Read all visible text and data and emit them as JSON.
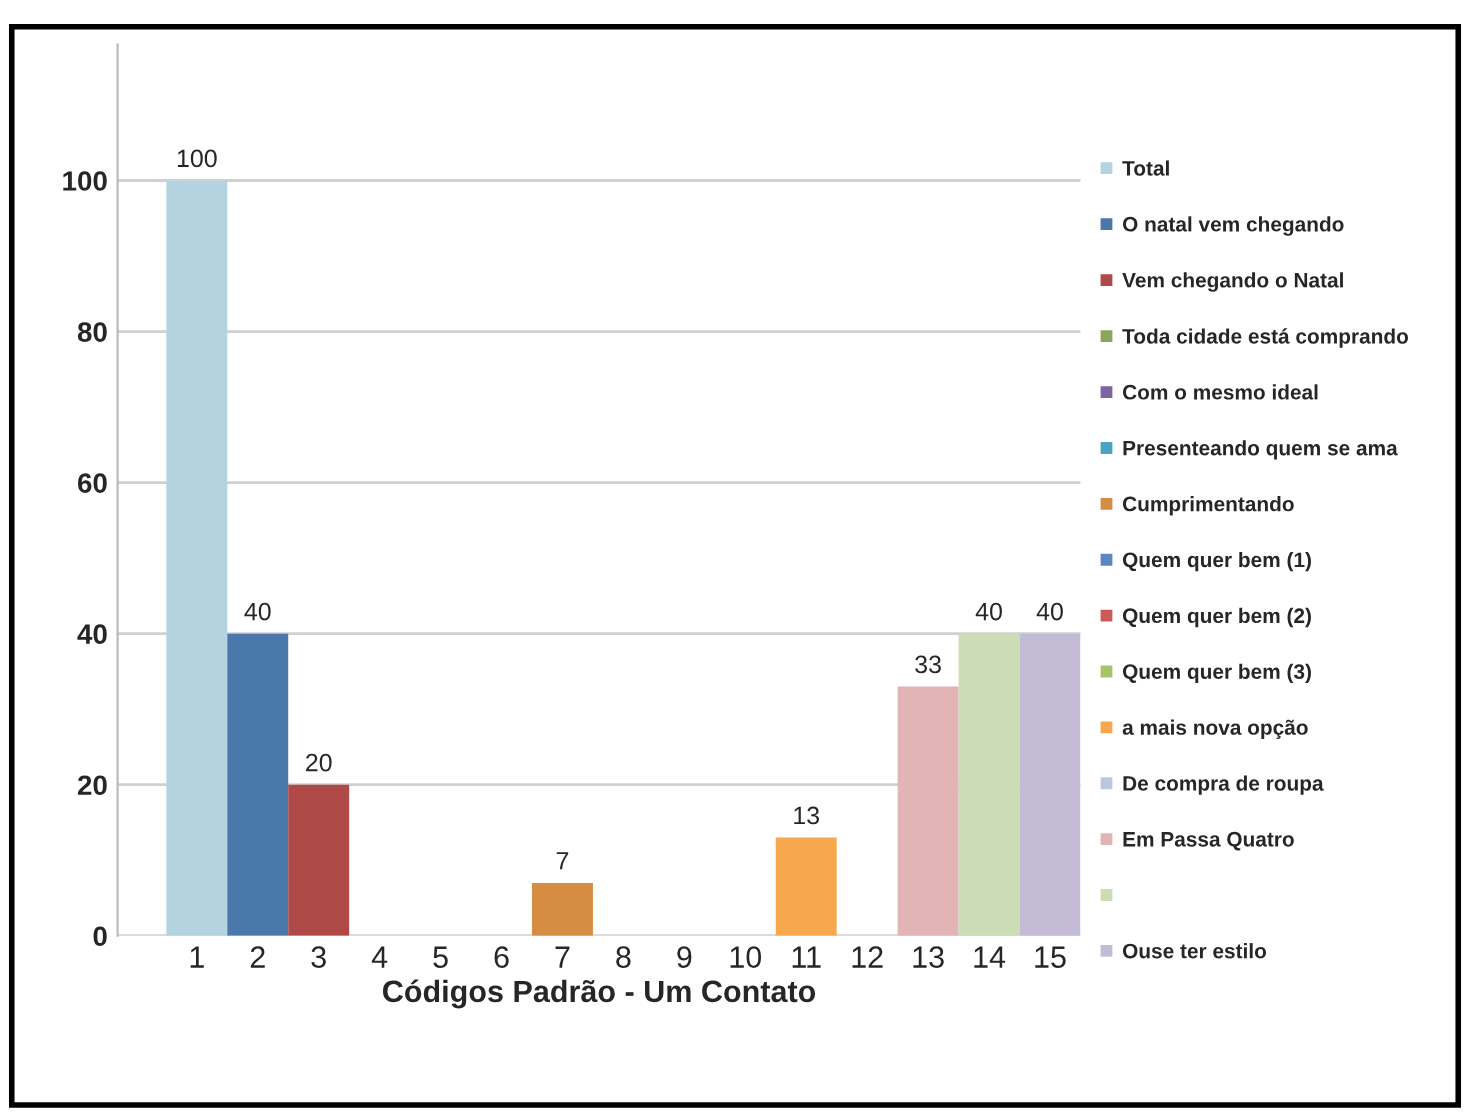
{
  "chart_data": {
    "type": "bar",
    "xlabel": "Códigos Padrão - Um Contato",
    "categories": [
      "1",
      "2",
      "3",
      "4",
      "5",
      "6",
      "7",
      "8",
      "9",
      "10",
      "11",
      "12",
      "13",
      "14",
      "15"
    ],
    "series": [
      {
        "name": "Total",
        "color": "#b3d3e0",
        "values": [
          100,
          null,
          null,
          null,
          null,
          null,
          null,
          null,
          null,
          null,
          null,
          null,
          null,
          null,
          null
        ],
        "value_labels": [
          "100",
          null,
          null,
          null,
          null,
          null,
          null,
          null,
          null,
          null,
          null,
          null,
          null,
          null,
          null
        ]
      },
      {
        "name": "O natal vem chegando",
        "color": "#4a78aa",
        "values": [
          null,
          40,
          null,
          null,
          null,
          null,
          null,
          null,
          null,
          null,
          null,
          null,
          null,
          null,
          null
        ],
        "value_labels": [
          null,
          "40",
          null,
          null,
          null,
          null,
          null,
          null,
          null,
          null,
          null,
          null,
          null,
          null,
          null
        ]
      },
      {
        "name": "Vem chegando o Natal",
        "color": "#b04a48",
        "values": [
          null,
          null,
          20,
          null,
          null,
          null,
          null,
          null,
          null,
          null,
          null,
          null,
          null,
          null,
          null
        ],
        "value_labels": [
          null,
          null,
          "20",
          null,
          null,
          null,
          null,
          null,
          null,
          null,
          null,
          null,
          null,
          null,
          null
        ]
      },
      {
        "name": "Toda cidade está comprando",
        "color": "#8aa65a",
        "values": [
          null,
          null,
          null,
          0,
          null,
          null,
          null,
          null,
          null,
          null,
          null,
          null,
          null,
          null,
          null
        ]
      },
      {
        "name": "Com o mesmo ideal",
        "color": "#7b64a0",
        "values": [
          null,
          null,
          null,
          null,
          0,
          null,
          null,
          null,
          null,
          null,
          null,
          null,
          null,
          null,
          null
        ]
      },
      {
        "name": "Presenteando quem se ama",
        "color": "#48a4bc",
        "values": [
          null,
          null,
          null,
          null,
          null,
          0,
          null,
          null,
          null,
          null,
          null,
          null,
          null,
          null,
          null
        ]
      },
      {
        "name": "Cumprimentando",
        "color": "#d68c42",
        "values": [
          null,
          null,
          null,
          null,
          null,
          null,
          7,
          null,
          null,
          null,
          null,
          null,
          null,
          null,
          null
        ],
        "value_labels": [
          null,
          null,
          null,
          null,
          null,
          null,
          "7",
          null,
          null,
          null,
          null,
          null,
          null,
          null,
          null
        ]
      },
      {
        "name": "Quem quer bem (1)",
        "color": "#5a86c4",
        "values": [
          null,
          null,
          null,
          null,
          null,
          null,
          null,
          0,
          null,
          null,
          null,
          null,
          null,
          null,
          null
        ]
      },
      {
        "name": "Quem quer bem (2)",
        "color": "#cc5a58",
        "values": [
          null,
          null,
          null,
          null,
          null,
          null,
          null,
          null,
          0,
          null,
          null,
          null,
          null,
          null,
          null
        ]
      },
      {
        "name": "Quem quer bem (3)",
        "color": "#a6c46a",
        "values": [
          null,
          null,
          null,
          null,
          null,
          null,
          null,
          null,
          null,
          0,
          null,
          null,
          null,
          null,
          null
        ]
      },
      {
        "name": "a mais nova opção",
        "color": "#f7a84e",
        "values": [
          null,
          null,
          null,
          null,
          null,
          null,
          null,
          null,
          null,
          null,
          13,
          null,
          null,
          null,
          null
        ],
        "value_labels": [
          null,
          null,
          null,
          null,
          null,
          null,
          null,
          null,
          null,
          null,
          "13",
          null,
          null,
          null,
          null
        ]
      },
      {
        "name": "De compra de roupa",
        "color": "#b8c8e0",
        "values": [
          null,
          null,
          null,
          null,
          null,
          null,
          null,
          null,
          null,
          null,
          null,
          0,
          null,
          null,
          null
        ]
      },
      {
        "name": "Em Passa Quatro",
        "color": "#e2b4b6",
        "values": [
          null,
          null,
          null,
          null,
          null,
          null,
          null,
          null,
          null,
          null,
          null,
          null,
          33,
          null,
          null
        ],
        "value_labels": [
          null,
          null,
          null,
          null,
          null,
          null,
          null,
          null,
          null,
          null,
          null,
          null,
          "33",
          null,
          null
        ]
      },
      {
        "color": "#ccdcb4",
        "values": [
          null,
          null,
          null,
          null,
          null,
          null,
          null,
          null,
          null,
          null,
          null,
          null,
          null,
          40,
          null
        ],
        "value_labels": [
          null,
          null,
          null,
          null,
          null,
          null,
          null,
          null,
          null,
          null,
          null,
          null,
          null,
          "40",
          null
        ]
      },
      {
        "name": "Ouse ter estilo",
        "color": "#c4bcd6",
        "values": [
          null,
          null,
          null,
          null,
          null,
          null,
          null,
          null,
          null,
          null,
          null,
          null,
          null,
          null,
          40
        ],
        "value_labels": [
          null,
          null,
          null,
          null,
          null,
          null,
          null,
          null,
          null,
          null,
          null,
          null,
          null,
          null,
          "40"
        ]
      }
    ],
    "ylim": [
      0,
      118
    ],
    "yticks": [
      0,
      20,
      40,
      60,
      80,
      100
    ],
    "grid": "y",
    "legend": "right"
  }
}
